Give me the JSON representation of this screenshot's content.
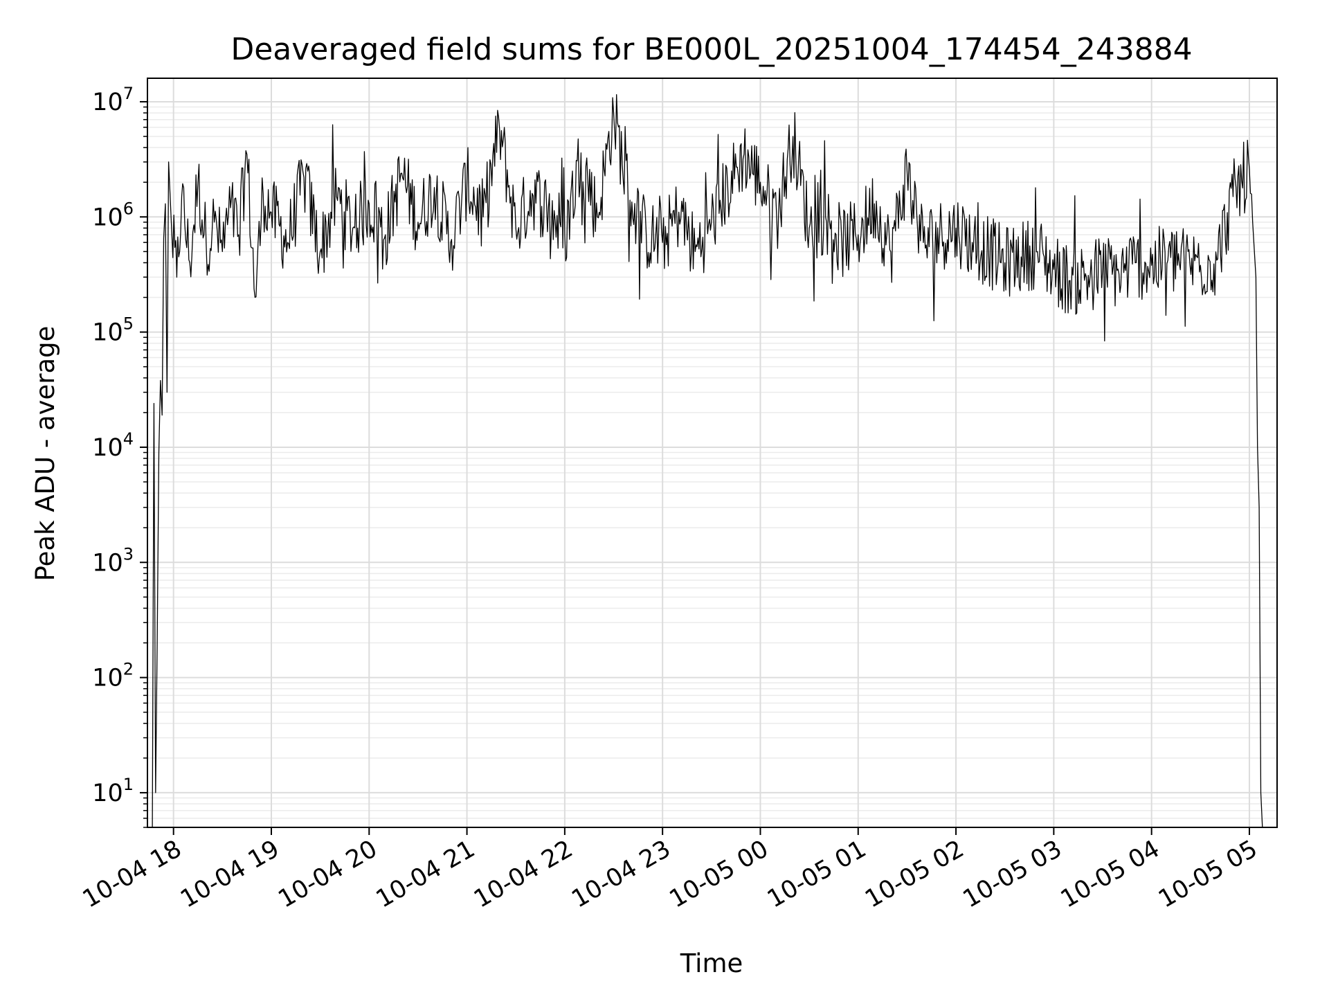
{
  "chart_data": {
    "type": "line",
    "title": "Deaveraged field sums for BE000L_20251004_174454_243884",
    "xlabel": "Time",
    "ylabel": "Peak ADU - average",
    "yscale": "log",
    "ylim": [
      5,
      16000000
    ],
    "xlim": [
      "2025-10-04 17:44",
      "2025-10-05 05:17"
    ],
    "grid": "on (major and minor)",
    "line_color": "#000000",
    "grid_color": "#e6e6e6",
    "x_ticks": [
      {
        "time": "2025-10-04 18:00",
        "label": "10-04 18"
      },
      {
        "time": "2025-10-04 19:00",
        "label": "10-04 19"
      },
      {
        "time": "2025-10-04 20:00",
        "label": "10-04 20"
      },
      {
        "time": "2025-10-04 21:00",
        "label": "10-04 21"
      },
      {
        "time": "2025-10-04 22:00",
        "label": "10-04 22"
      },
      {
        "time": "2025-10-04 23:00",
        "label": "10-04 23"
      },
      {
        "time": "2025-10-05 00:00",
        "label": "10-05 00"
      },
      {
        "time": "2025-10-05 01:00",
        "label": "10-05 01"
      },
      {
        "time": "2025-10-05 02:00",
        "label": "10-05 02"
      },
      {
        "time": "2025-10-05 03:00",
        "label": "10-05 03"
      },
      {
        "time": "2025-10-05 04:00",
        "label": "10-05 04"
      },
      {
        "time": "2025-10-05 05:00",
        "label": "10-05 05"
      }
    ],
    "y_ticks": [
      {
        "value": 10,
        "base": "10",
        "exp": "1"
      },
      {
        "value": 100,
        "base": "10",
        "exp": "2"
      },
      {
        "value": 1000,
        "base": "10",
        "exp": "3"
      },
      {
        "value": 10000,
        "base": "10",
        "exp": "4"
      },
      {
        "value": 100000,
        "base": "10",
        "exp": "5"
      },
      {
        "value": 1000000,
        "base": "10",
        "exp": "6"
      },
      {
        "value": 10000000,
        "base": "10",
        "exp": "7"
      }
    ],
    "series": [
      {
        "x": [
          "2025-10-04 17:47",
          "2025-10-04 17:48",
          "2025-10-04 17:49",
          "2025-10-04 17:50",
          "2025-10-04 17:51",
          "2025-10-04 17:52",
          "2025-10-04 17:53",
          "2025-10-04 17:54",
          "2025-10-04 17:55",
          "2025-10-04 17:56",
          "2025-10-04 17:57",
          "2025-10-04 17:59",
          "2025-10-04 18:02",
          "2025-10-04 18:05",
          "2025-10-04 18:10",
          "2025-10-04 18:15",
          "2025-10-04 18:20",
          "2025-10-04 18:25",
          "2025-10-04 18:30",
          "2025-10-04 18:35",
          "2025-10-04 18:40",
          "2025-10-04 18:45",
          "2025-10-04 18:50",
          "2025-10-04 18:55",
          "2025-10-04 19:00",
          "2025-10-04 19:10",
          "2025-10-04 19:20",
          "2025-10-04 19:30",
          "2025-10-04 19:40",
          "2025-10-04 19:50",
          "2025-10-04 20:00",
          "2025-10-04 20:10",
          "2025-10-04 20:20",
          "2025-10-04 20:30",
          "2025-10-04 20:40",
          "2025-10-04 20:50",
          "2025-10-04 21:00",
          "2025-10-04 21:10",
          "2025-10-04 21:20",
          "2025-10-04 21:30",
          "2025-10-04 21:40",
          "2025-10-04 21:50",
          "2025-10-04 22:00",
          "2025-10-04 22:10",
          "2025-10-04 22:20",
          "2025-10-04 22:30",
          "2025-10-04 22:40",
          "2025-10-04 22:50",
          "2025-10-04 23:00",
          "2025-10-04 23:10",
          "2025-10-04 23:20",
          "2025-10-04 23:30",
          "2025-10-04 23:40",
          "2025-10-04 23:50",
          "2025-10-05 00:00",
          "2025-10-05 00:10",
          "2025-10-05 00:20",
          "2025-10-05 00:30",
          "2025-10-05 00:40",
          "2025-10-05 00:50",
          "2025-10-05 01:00",
          "2025-10-05 01:10",
          "2025-10-05 01:20",
          "2025-10-05 01:30",
          "2025-10-05 01:40",
          "2025-10-05 01:50",
          "2025-10-05 02:00",
          "2025-10-05 02:10",
          "2025-10-05 02:20",
          "2025-10-05 02:30",
          "2025-10-05 02:40",
          "2025-10-05 02:50",
          "2025-10-05 03:00",
          "2025-10-05 03:10",
          "2025-10-05 03:20",
          "2025-10-05 03:30",
          "2025-10-05 03:40",
          "2025-10-05 03:50",
          "2025-10-05 04:00",
          "2025-10-05 04:10",
          "2025-10-05 04:20",
          "2025-10-05 04:30",
          "2025-10-05 04:40",
          "2025-10-05 04:50",
          "2025-10-05 05:00",
          "2025-10-05 05:02",
          "2025-10-05 05:04",
          "2025-10-05 05:05",
          "2025-10-05 05:06",
          "2025-10-05 05:07",
          "2025-10-05 05:08"
        ],
        "y": [
          5,
          24000,
          10,
          200,
          9000,
          38000,
          19000,
          650000,
          1300000,
          30000,
          3000000,
          700000,
          300000,
          1500000,
          400000,
          2000000,
          600000,
          900000,
          500000,
          1200000,
          700000,
          3500000,
          200000,
          1600000,
          1100000,
          600000,
          2200000,
          500000,
          1500000,
          800000,
          1300000,
          700000,
          2400000,
          900000,
          1800000,
          600000,
          2000000,
          1000000,
          5800000,
          800000,
          1600000,
          1200000,
          700000,
          3600000,
          1000000,
          8000000,
          1400000,
          700000,
          600000,
          1100000,
          500000,
          900000,
          1800000,
          3500000,
          2000000,
          1000000,
          5000000,
          800000,
          1000000,
          600000,
          700000,
          1300000,
          500000,
          2500000,
          600000,
          700000,
          800000,
          600000,
          500000,
          400000,
          450000,
          500000,
          350000,
          280000,
          300000,
          350000,
          320000,
          400000,
          380000,
          420000,
          400000,
          380000,
          420000,
          1500000,
          2600000,
          900000,
          300000,
          10000,
          3000,
          10,
          5
        ]
      }
    ]
  }
}
